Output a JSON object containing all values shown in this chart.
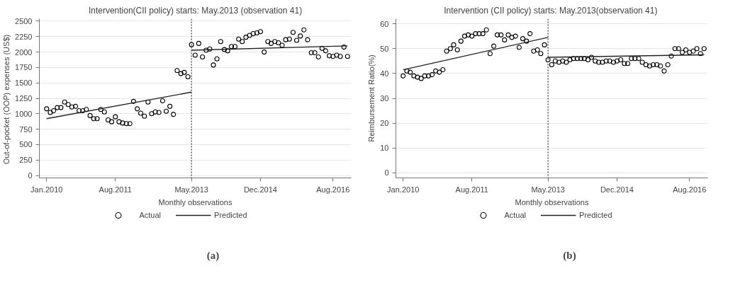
{
  "chart_data": [
    {
      "type": "scatter",
      "title": "Intervention(CII policy) starts: May.2013 (observation 41)",
      "xlabel": "Monthly observations",
      "ylabel": "Out-of-pocket  (OOP) expenses (US$)",
      "xlim": [
        "2009-11",
        "2017-01"
      ],
      "xticks": [
        {
          "value": "2010-01",
          "label": "Jan.2010"
        },
        {
          "value": "2011-08",
          "label": "Aug.2011"
        },
        {
          "value": "2013-05",
          "label": "May.2013"
        },
        {
          "value": "2014-12",
          "label": "Dec.2014"
        },
        {
          "value": "2016-08",
          "label": "Aug.2016"
        }
      ],
      "ylim": [
        -40,
        2540
      ],
      "yticks": [
        0,
        250,
        500,
        750,
        1000,
        1250,
        1500,
        1750,
        2000,
        2250,
        2500
      ],
      "grid": "y",
      "legend": "bottom",
      "ref_lines": [
        {
          "axis": "x",
          "value": "2013-05",
          "line_style": "dotted",
          "color": "#333333"
        }
      ],
      "annotations": [
        "(a)"
      ],
      "series": [
        {
          "name": "Actual",
          "marker": "circle",
          "color": "#000000",
          "x": [
            "2010-01",
            "2010-02",
            "2010-03",
            "2010-04",
            "2010-05",
            "2010-06",
            "2010-07",
            "2010-08",
            "2010-09",
            "2010-10",
            "2010-11",
            "2010-12",
            "2011-01",
            "2011-02",
            "2011-03",
            "2011-04",
            "2011-05",
            "2011-06",
            "2011-07",
            "2011-08",
            "2011-09",
            "2011-10",
            "2011-11",
            "2011-12",
            "2012-01",
            "2012-02",
            "2012-03",
            "2012-04",
            "2012-05",
            "2012-06",
            "2012-07",
            "2012-08",
            "2012-09",
            "2012-10",
            "2012-11",
            "2012-12",
            "2013-01",
            "2013-02",
            "2013-03",
            "2013-04",
            "2013-05",
            "2013-06",
            "2013-07",
            "2013-08",
            "2013-09",
            "2013-10",
            "2013-11",
            "2013-12",
            "2014-01",
            "2014-02",
            "2014-03",
            "2014-04",
            "2014-05",
            "2014-06",
            "2014-07",
            "2014-08",
            "2014-09",
            "2014-10",
            "2014-11",
            "2014-12",
            "2015-01",
            "2015-02",
            "2015-03",
            "2015-04",
            "2015-05",
            "2015-06",
            "2015-07",
            "2015-08",
            "2015-09",
            "2015-10",
            "2015-11",
            "2015-12",
            "2016-01",
            "2016-02",
            "2016-03",
            "2016-04",
            "2016-05",
            "2016-06",
            "2016-07",
            "2016-08",
            "2016-09",
            "2016-10",
            "2016-11",
            "2016-12"
          ],
          "values": [
            1080,
            1020,
            1050,
            1100,
            1100,
            1190,
            1150,
            1110,
            1120,
            1050,
            1050,
            1070,
            970,
            920,
            920,
            1070,
            1030,
            900,
            870,
            950,
            870,
            850,
            840,
            840,
            1200,
            1080,
            1010,
            960,
            1190,
            1000,
            1030,
            1020,
            1210,
            1040,
            1120,
            990,
            1700,
            1650,
            1670,
            1600,
            2120,
            1950,
            2140,
            1920,
            2030,
            2050,
            1790,
            1890,
            2170,
            2040,
            2020,
            2090,
            2090,
            2210,
            2170,
            2240,
            2270,
            2300,
            2310,
            2330,
            2000,
            2170,
            2140,
            2170,
            2150,
            2110,
            2200,
            2210,
            2320,
            2190,
            2260,
            2360,
            2200,
            1990,
            1990,
            1920,
            2060,
            2020,
            1940,
            1930,
            1950,
            1930,
            2080,
            1930
          ]
        },
        {
          "name": "Predicted",
          "type": "line",
          "marker": "none",
          "color": "#222222",
          "line_style": "solid",
          "x": [
            "2010-01",
            "2013-05",
            null,
            "2013-05",
            "2016-12"
          ],
          "values": [
            920,
            1350,
            null,
            2030,
            2100
          ]
        }
      ]
    },
    {
      "type": "scatter",
      "title": "Intervention (CII policy)  starts: May.2013(observation 41)",
      "xlabel": "Monthly observations",
      "ylabel": "Reimbursement Ratio(%)",
      "xlim": [
        "2009-11",
        "2017-01"
      ],
      "xticks": [
        {
          "value": "2010-01",
          "label": "Jan.2010"
        },
        {
          "value": "2011-08",
          "label": "Aug.2011"
        },
        {
          "value": "2013-05",
          "label": "May.2013"
        },
        {
          "value": "2014-12",
          "label": "Dec.2014"
        },
        {
          "value": "2016-08",
          "label": "Aug.2016"
        }
      ],
      "ylim": [
        -2,
        62
      ],
      "yticks": [
        0,
        10,
        20,
        30,
        40,
        50,
        60
      ],
      "grid": "y",
      "legend": "bottom",
      "ref_lines": [
        {
          "axis": "x",
          "value": "2013-05",
          "line_style": "dotted",
          "color": "#333333"
        }
      ],
      "annotations": [
        "(b)"
      ],
      "series": [
        {
          "name": "Actual",
          "marker": "circle",
          "color": "#000000",
          "x": [
            "2010-01",
            "2010-02",
            "2010-03",
            "2010-04",
            "2010-05",
            "2010-06",
            "2010-07",
            "2010-08",
            "2010-09",
            "2010-10",
            "2010-11",
            "2010-12",
            "2011-01",
            "2011-02",
            "2011-03",
            "2011-04",
            "2011-05",
            "2011-06",
            "2011-07",
            "2011-08",
            "2011-09",
            "2011-10",
            "2011-11",
            "2011-12",
            "2012-01",
            "2012-02",
            "2012-03",
            "2012-04",
            "2012-05",
            "2012-06",
            "2012-07",
            "2012-08",
            "2012-09",
            "2012-10",
            "2012-11",
            "2012-12",
            "2013-01",
            "2013-02",
            "2013-03",
            "2013-04",
            "2013-05",
            "2013-06",
            "2013-07",
            "2013-08",
            "2013-09",
            "2013-10",
            "2013-11",
            "2013-12",
            "2014-01",
            "2014-02",
            "2014-03",
            "2014-04",
            "2014-05",
            "2014-06",
            "2014-07",
            "2014-08",
            "2014-09",
            "2014-10",
            "2014-11",
            "2014-12",
            "2015-01",
            "2015-02",
            "2015-03",
            "2015-04",
            "2015-05",
            "2015-06",
            "2015-07",
            "2015-08",
            "2015-09",
            "2015-10",
            "2015-11",
            "2015-12",
            "2016-01",
            "2016-02",
            "2016-03",
            "2016-04",
            "2016-05",
            "2016-06",
            "2016-07",
            "2016-08",
            "2016-09",
            "2016-10",
            "2016-11",
            "2016-12"
          ],
          "values": [
            39.0,
            41.0,
            40.5,
            39.0,
            38.5,
            38.0,
            39.0,
            39.0,
            39.5,
            41.0,
            40.5,
            41.5,
            49.0,
            50.0,
            51.5,
            49.5,
            53.0,
            55.0,
            55.5,
            55.0,
            56.0,
            56.0,
            56.0,
            57.5,
            48.0,
            51.0,
            55.5,
            55.5,
            53.5,
            55.5,
            54.5,
            55.0,
            50.5,
            54.0,
            53.0,
            56.0,
            49.0,
            49.5,
            48.0,
            51.5,
            45.5,
            43.5,
            45.0,
            44.5,
            45.0,
            44.5,
            45.5,
            46.0,
            46.0,
            46.0,
            46.0,
            45.5,
            46.5,
            45.0,
            44.5,
            44.5,
            45.0,
            45.0,
            44.5,
            45.0,
            45.5,
            44.0,
            44.0,
            46.0,
            46.0,
            46.0,
            44.5,
            43.5,
            43.0,
            43.5,
            43.5,
            43.0,
            41.0,
            43.5,
            47.0,
            50.0,
            50.0,
            48.5,
            49.5,
            48.5,
            49.0,
            50.0,
            48.0,
            50.0
          ]
        },
        {
          "name": "Predicted",
          "type": "line",
          "marker": "none",
          "color": "#222222",
          "line_style": "solid",
          "x": [
            "2010-01",
            "2013-05",
            null,
            "2013-05",
            "2016-12"
          ],
          "values": [
            41.5,
            54.5,
            null,
            46.5,
            47.5
          ]
        }
      ]
    }
  ]
}
